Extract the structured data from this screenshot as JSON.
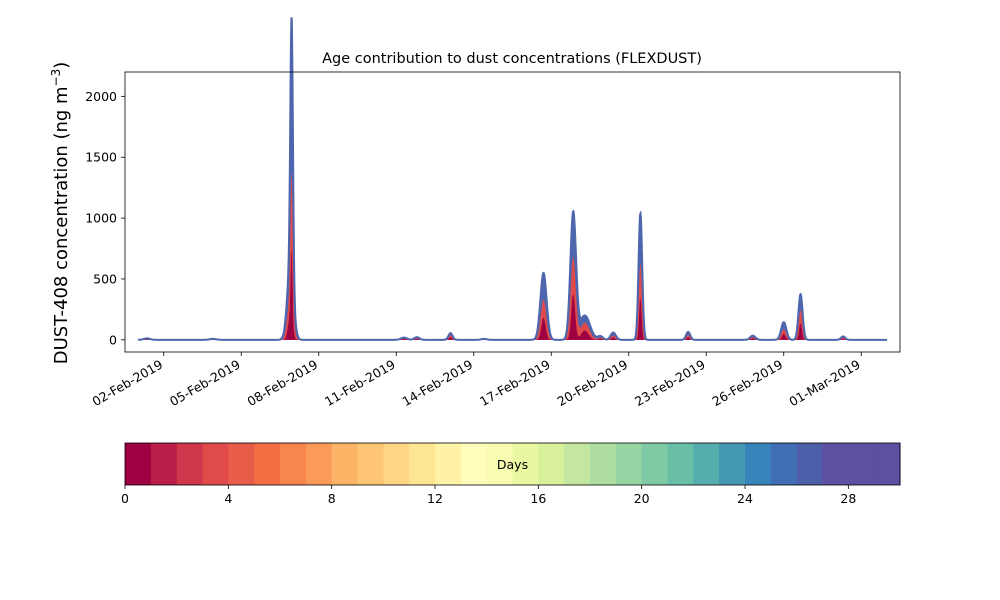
{
  "chart_data": {
    "type": "area",
    "title": "Age contribution to dust concentrations (FLEXDUST)",
    "ylabel_main": "DUST-408 concentration (ng m",
    "ylabel_unit": "m",
    "ylabel_sup": "−3",
    "ylabel_close": ")",
    "ylim": [
      -100,
      2200
    ],
    "y_ticks": [
      0,
      500,
      1000,
      1500,
      2000
    ],
    "x_range_days": [
      -1.5,
      28.5
    ],
    "x_ticks": [
      {
        "pos": 0,
        "label": "02-Feb-2019"
      },
      {
        "pos": 3,
        "label": "05-Feb-2019"
      },
      {
        "pos": 6,
        "label": "08-Feb-2019"
      },
      {
        "pos": 9,
        "label": "11-Feb-2019"
      },
      {
        "pos": 12,
        "label": "14-Feb-2019"
      },
      {
        "pos": 15,
        "label": "17-Feb-2019"
      },
      {
        "pos": 18,
        "label": "20-Feb-2019"
      },
      {
        "pos": 21,
        "label": "23-Feb-2019"
      },
      {
        "pos": 24,
        "label": "26-Feb-2019"
      },
      {
        "pos": 27,
        "label": "01-Mar-2019"
      }
    ],
    "peaks": [
      {
        "date": "02-Feb-2019 (~-0.7d)",
        "t": -0.65,
        "total": 12,
        "young_frac": 0.5,
        "width": 0.12
      },
      {
        "t": 1.9,
        "total": 8,
        "young_frac": 0.4,
        "width": 0.12
      },
      {
        "t": 4.95,
        "total": 2100,
        "young_frac": 0.5,
        "width": 0.05
      },
      {
        "t": 4.9,
        "total": 600,
        "young_frac": 0.6,
        "width": 0.12
      },
      {
        "t": 9.3,
        "total": 18,
        "young_frac": 0.6,
        "width": 0.12
      },
      {
        "t": 9.8,
        "total": 22,
        "young_frac": 0.6,
        "width": 0.1
      },
      {
        "t": 11.1,
        "total": 55,
        "young_frac": 0.7,
        "width": 0.08
      },
      {
        "t": 12.4,
        "total": 8,
        "young_frac": 0.4,
        "width": 0.1
      },
      {
        "t": 14.7,
        "total": 550,
        "young_frac": 0.6,
        "width": 0.12
      },
      {
        "t": 15.85,
        "total": 1040,
        "young_frac": 0.65,
        "width": 0.11
      },
      {
        "t": 16.3,
        "total": 200,
        "young_frac": 0.7,
        "width": 0.2
      },
      {
        "t": 16.9,
        "total": 30,
        "young_frac": 0.6,
        "width": 0.1
      },
      {
        "t": 17.4,
        "total": 60,
        "young_frac": 0.6,
        "width": 0.1
      },
      {
        "t": 18.45,
        "total": 1040,
        "young_frac": 0.6,
        "width": 0.07
      },
      {
        "t": 20.3,
        "total": 65,
        "young_frac": 0.6,
        "width": 0.08
      },
      {
        "t": 22.8,
        "total": 35,
        "young_frac": 0.6,
        "width": 0.1
      },
      {
        "t": 24.0,
        "total": 145,
        "young_frac": 0.6,
        "width": 0.1
      },
      {
        "t": 24.65,
        "total": 375,
        "young_frac": 0.65,
        "width": 0.08
      },
      {
        "t": 26.3,
        "total": 28,
        "young_frac": 0.6,
        "width": 0.08
      }
    ],
    "t_start": -1.0,
    "t_end": 28.0,
    "baseline": -5
  },
  "colorbar": {
    "label": "Days",
    "ticks": [
      0,
      4,
      8,
      12,
      16,
      20,
      24,
      28
    ],
    "max": 30,
    "colors": [
      "#9e0142",
      "#b91e48",
      "#d0364b",
      "#e04a4b",
      "#e85d49",
      "#f26f44",
      "#f7854e",
      "#fb9a59",
      "#fdb365",
      "#fdc574",
      "#fed684",
      "#fee593",
      "#fff2a6",
      "#fefdbc",
      "#f7fcb1",
      "#eaf7a1",
      "#d9f09a",
      "#c4e79f",
      "#aedea2",
      "#96d4a4",
      "#7fcaa5",
      "#68bfa5",
      "#55aeac",
      "#4599b2",
      "#3684bb",
      "#3f6fb2",
      "#4e5faa",
      "#5e4fa2",
      "#5e4fa2",
      "#5e4fa2"
    ]
  },
  "colors": {
    "series_young": "#9e0142",
    "series_mid": "#e04a4b",
    "series_old": "#4e66ad",
    "line": "#4e66ad"
  }
}
